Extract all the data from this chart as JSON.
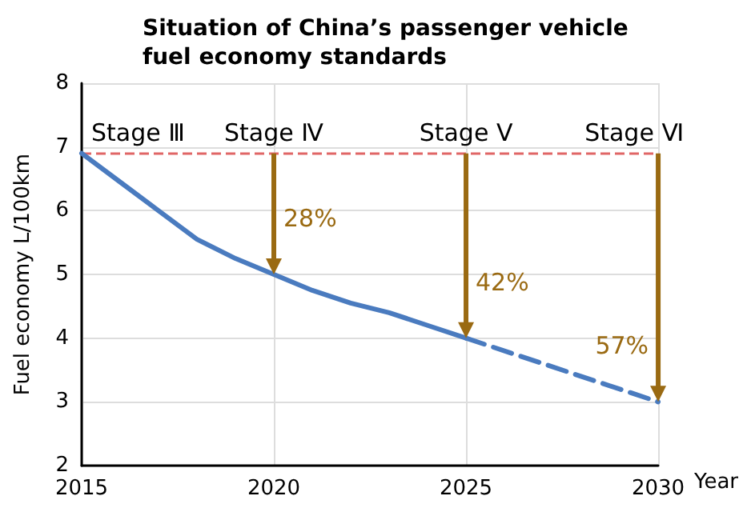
{
  "chart_data": {
    "type": "line",
    "title": "Situation of China’s passenger vehicle fuel economy standards",
    "xlabel": "Year",
    "ylabel": "Fuel economy L/100km",
    "xlim": [
      2015,
      2030
    ],
    "xticks": [
      2015,
      2020,
      2025,
      2030
    ],
    "ylim": [
      2,
      8
    ],
    "yticks": [
      2,
      3,
      4,
      5,
      6,
      7,
      8
    ],
    "grid": true,
    "marker": "none",
    "series": [
      {
        "color": "#4a7bbf",
        "line_style": "solid",
        "x": [
          2015,
          2016,
          2017,
          2018,
          2019,
          2020,
          2021,
          2022,
          2023,
          2024,
          2025
        ],
        "values": [
          6.9,
          6.45,
          6.0,
          5.55,
          5.25,
          5.0,
          4.75,
          4.55,
          4.4,
          4.2,
          4.0
        ]
      },
      {
        "color": "#4a7bbf",
        "line_style": "dashed",
        "x": [
          2025,
          2030
        ],
        "values": [
          4.0,
          3.0
        ]
      }
    ],
    "ref_lines": [
      {
        "axis": "y",
        "value": 6.9,
        "color": "#e06666",
        "line_style": "dashed"
      }
    ],
    "annotations": [
      "Stage Ⅲ",
      "Stage Ⅳ",
      "Stage Ⅴ",
      "Stage Ⅵ",
      {
        "text": "28%",
        "x": 2020,
        "y": 5.0
      },
      {
        "text": "42%",
        "x": 2025,
        "y": 4.0
      },
      {
        "text": "57%",
        "x": 2030,
        "y": 3.0
      }
    ]
  }
}
